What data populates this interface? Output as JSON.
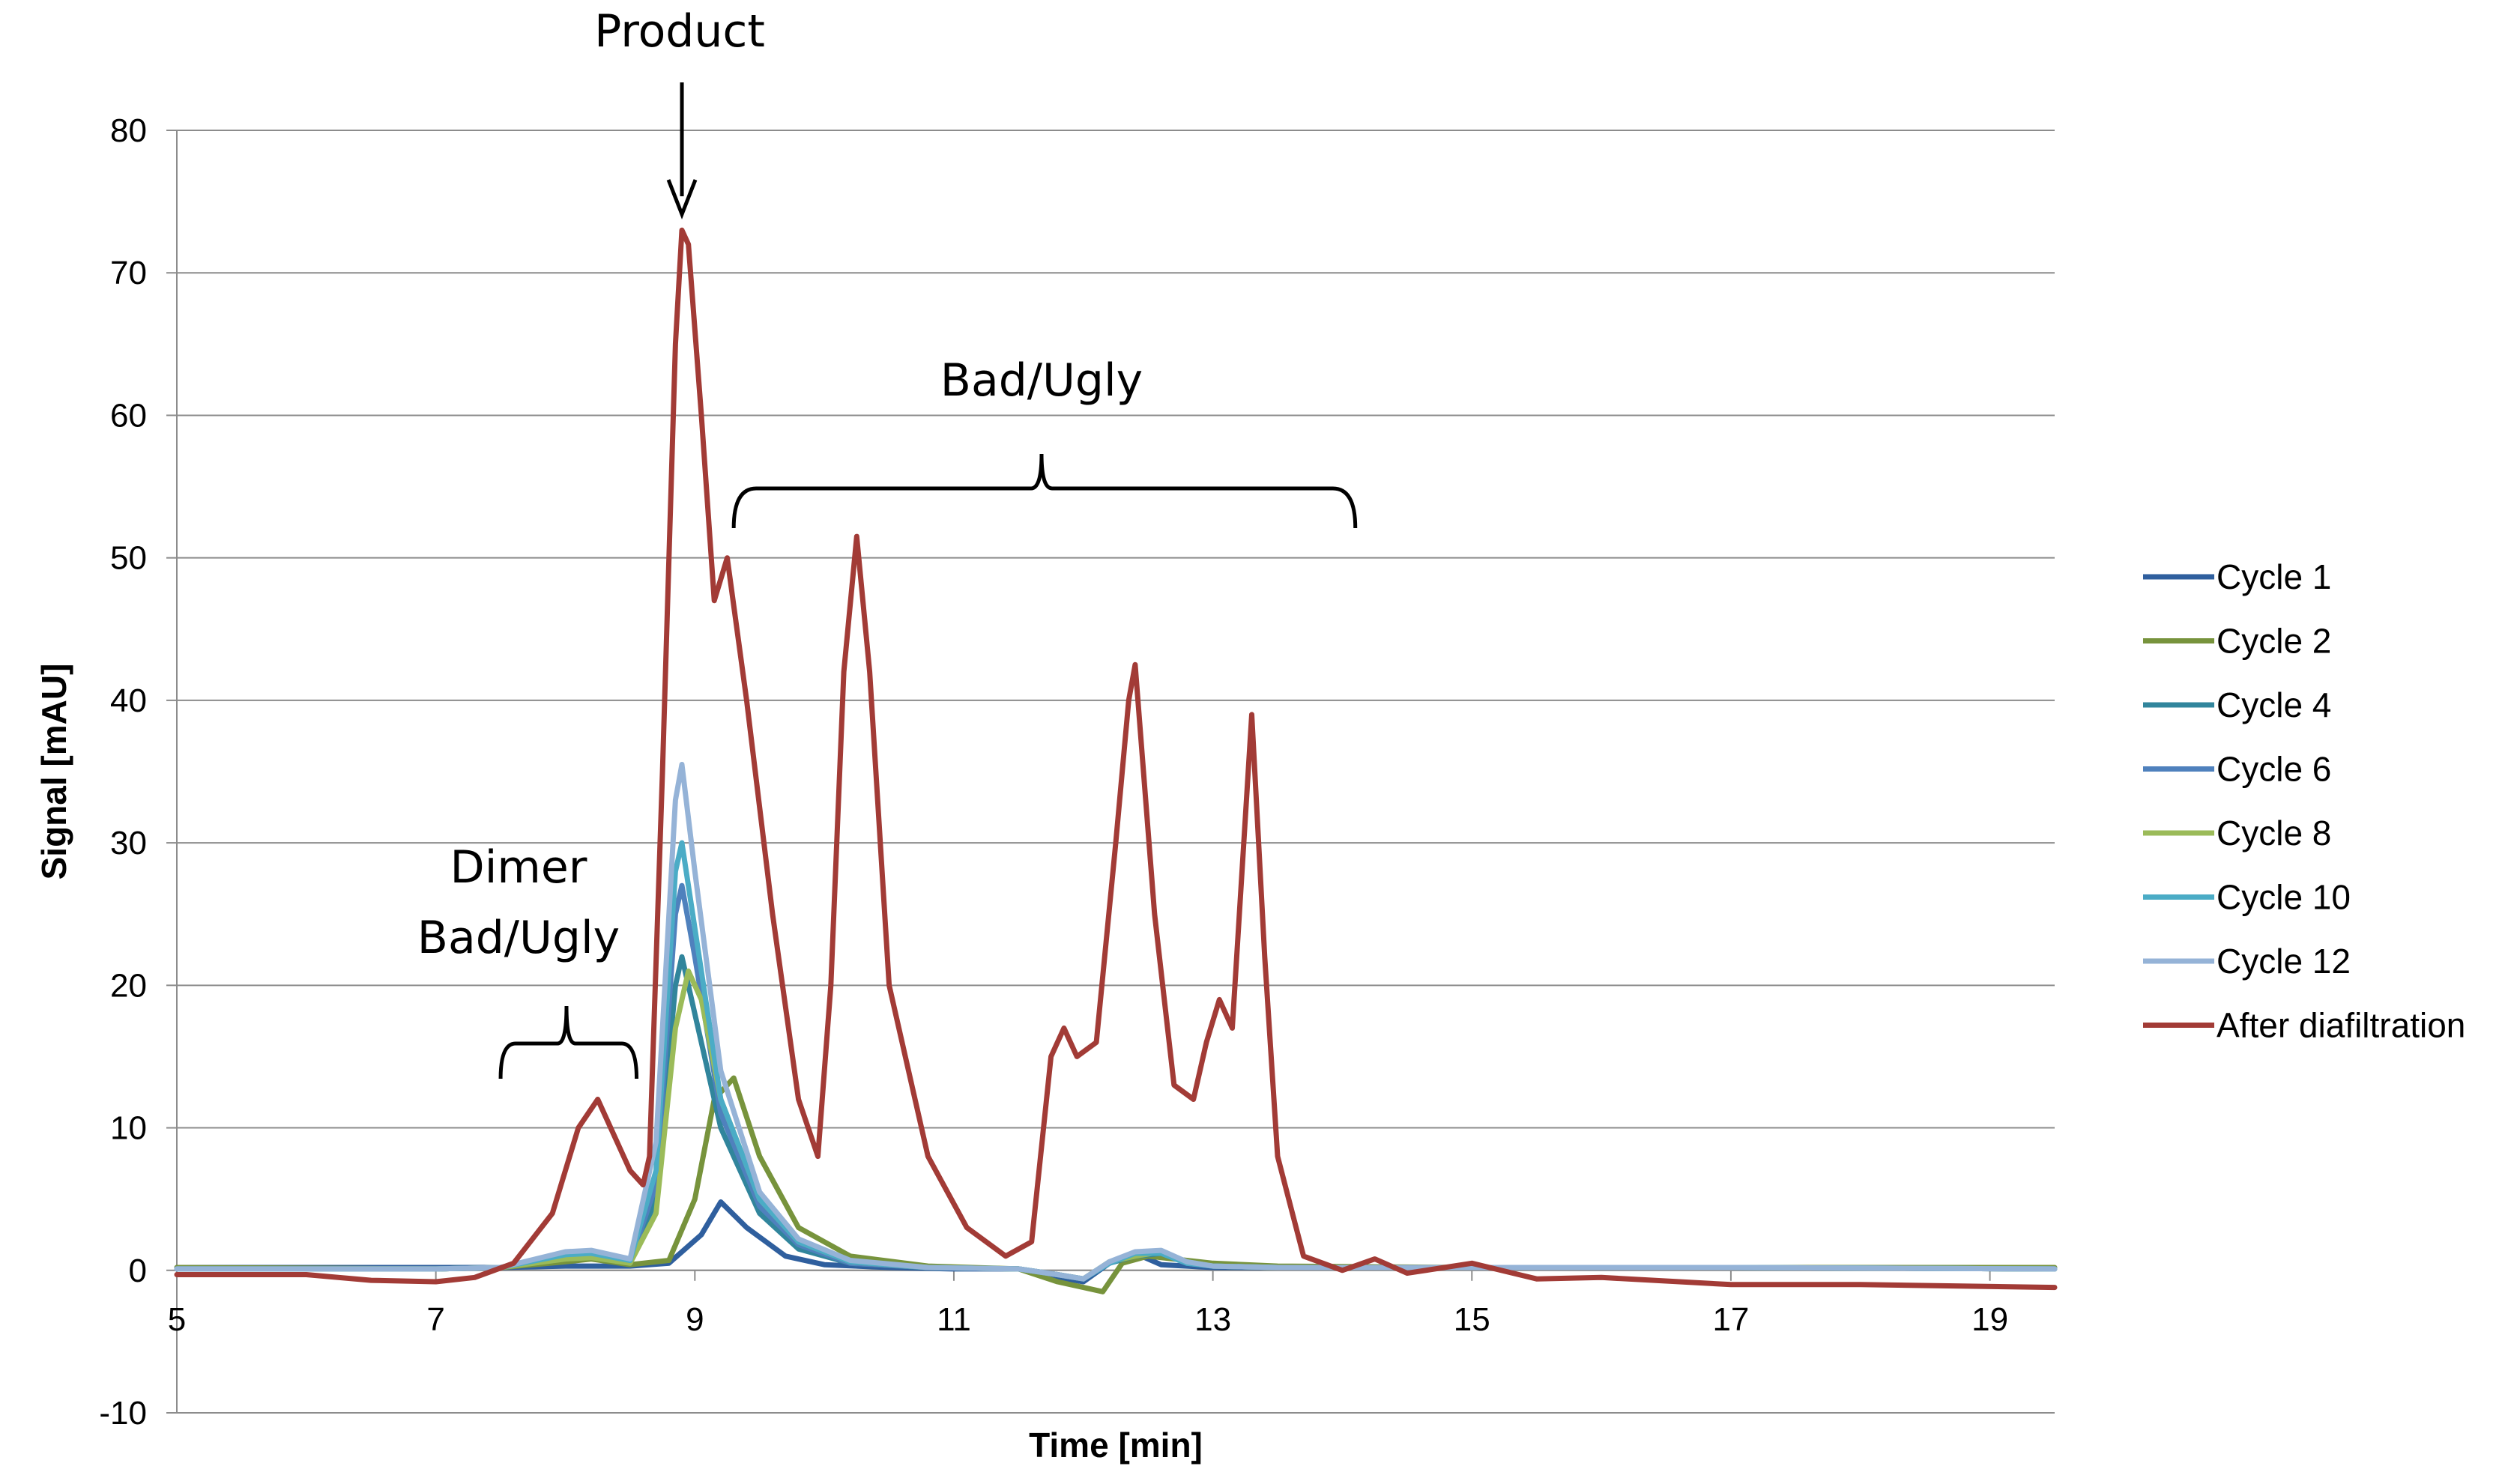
{
  "chart_data": {
    "type": "line",
    "title": "",
    "xlabel": "Time [min]",
    "ylabel": "Signal [mAU]",
    "xlim": [
      5,
      19.5
    ],
    "ylim": [
      -10,
      80
    ],
    "xticks": [
      5,
      7,
      9,
      11,
      13,
      15,
      17,
      19
    ],
    "yticks": [
      -10,
      0,
      10,
      20,
      30,
      40,
      50,
      60,
      70,
      80
    ],
    "grid": "horizontal",
    "legend_position": "right",
    "series": [
      {
        "name": "Cycle 1",
        "color": "#2f5f9e",
        "x": [
          5,
          7,
          7.5,
          8,
          8.5,
          8.8,
          9.05,
          9.2,
          9.4,
          9.7,
          10,
          10.5,
          11,
          11.5,
          11.8,
          12,
          12.2,
          12.4,
          12.6,
          12.8,
          13,
          13.5,
          15,
          17,
          19.5
        ],
        "y": [
          0.2,
          0.2,
          0.2,
          0.3,
          0.3,
          0.5,
          2.5,
          4.8,
          3,
          1,
          0.4,
          0.2,
          0.1,
          0.1,
          -0.5,
          -0.8,
          0.5,
          1.2,
          0.4,
          0.3,
          0.2,
          0.2,
          0.2,
          0.2,
          0.1
        ]
      },
      {
        "name": "Cycle 2",
        "color": "#77933c",
        "x": [
          5,
          7,
          7.5,
          8,
          8.2,
          8.5,
          8.8,
          9,
          9.15,
          9.3,
          9.5,
          9.8,
          10.2,
          10.8,
          11.5,
          11.8,
          12,
          12.15,
          12.3,
          12.5,
          12.7,
          13,
          13.5,
          15,
          17,
          19.5
        ],
        "y": [
          0.2,
          0.1,
          0.2,
          0.6,
          0.8,
          0.4,
          0.7,
          5,
          12,
          13.5,
          8,
          3,
          1,
          0.3,
          0.1,
          -0.8,
          -1.2,
          -1.5,
          0.5,
          1,
          0.8,
          0.5,
          0.3,
          0.2,
          0.2,
          0.2
        ]
      },
      {
        "name": "Cycle 4",
        "color": "#31859c",
        "x": [
          5,
          7,
          7.5,
          8,
          8.2,
          8.5,
          8.7,
          8.85,
          8.9,
          9,
          9.2,
          9.5,
          9.8,
          10.2,
          10.8,
          11.5,
          11.8,
          12,
          12.2,
          12.4,
          12.6,
          12.8,
          13,
          13.5,
          15,
          17,
          19.5
        ],
        "y": [
          0.1,
          0.1,
          0.2,
          0.9,
          1,
          0.5,
          5,
          20,
          22,
          18,
          10,
          4,
          1.5,
          0.5,
          0.2,
          0.1,
          -0.3,
          -0.6,
          0.5,
          1,
          1.2,
          0.5,
          0.3,
          0.2,
          0.2,
          0.2,
          0.1
        ]
      },
      {
        "name": "Cycle 6",
        "color": "#4f81bd",
        "x": [
          5,
          7,
          7.5,
          8,
          8.2,
          8.5,
          8.7,
          8.85,
          8.9,
          9,
          9.2,
          9.5,
          9.8,
          10.2,
          10.8,
          11.5,
          11.8,
          12,
          12.2,
          12.4,
          12.6,
          12.8,
          13,
          13.5,
          15,
          17,
          19.5
        ],
        "y": [
          0.1,
          0.1,
          0.2,
          1,
          1.1,
          0.6,
          6,
          25,
          27,
          22,
          11,
          4.5,
          1.8,
          0.5,
          0.2,
          0.1,
          -0.3,
          -0.6,
          0.5,
          1.2,
          1.2,
          0.5,
          0.3,
          0.2,
          0.2,
          0.2,
          0.1
        ]
      },
      {
        "name": "Cycle 8",
        "color": "#9bbb59",
        "x": [
          5,
          7,
          7.5,
          8,
          8.2,
          8.5,
          8.7,
          8.85,
          8.95,
          9.05,
          9.2,
          9.5,
          9.8,
          10.2,
          10.8,
          11.5,
          11.8,
          12,
          12.2,
          12.4,
          12.6,
          12.8,
          13,
          13.5,
          15,
          17,
          19.5
        ],
        "y": [
          0.1,
          0.1,
          0.2,
          0.8,
          0.9,
          0.5,
          4,
          17,
          21,
          19,
          12,
          5,
          2,
          0.6,
          0.2,
          0.1,
          -0.3,
          -0.6,
          0.6,
          1,
          1.3,
          0.6,
          0.3,
          0.2,
          0.2,
          0.2,
          0.1
        ]
      },
      {
        "name": "Cycle 10",
        "color": "#4bacc6",
        "x": [
          5,
          7,
          7.5,
          8,
          8.2,
          8.5,
          8.7,
          8.85,
          8.9,
          9,
          9.2,
          9.5,
          9.8,
          10.2,
          10.8,
          11.5,
          11.8,
          12,
          12.2,
          12.4,
          12.6,
          12.8,
          13,
          13.5,
          15,
          17,
          19.5
        ],
        "y": [
          0.1,
          0.1,
          0.2,
          1.1,
          1.2,
          0.7,
          7,
          28,
          30,
          24,
          12,
          5,
          2,
          0.6,
          0.2,
          0.1,
          -0.3,
          -0.6,
          0.5,
          1.2,
          1.2,
          0.5,
          0.3,
          0.2,
          0.2,
          0.2,
          0.1
        ]
      },
      {
        "name": "Cycle 12",
        "color": "#95b3d7",
        "x": [
          5,
          7,
          7.5,
          8,
          8.2,
          8.5,
          8.7,
          8.85,
          8.9,
          9,
          9.2,
          9.5,
          9.8,
          10.2,
          10.8,
          11.5,
          11.8,
          12,
          12.2,
          12.4,
          12.6,
          12.8,
          13,
          13.5,
          15,
          17,
          19.5
        ],
        "y": [
          0.1,
          0.1,
          0.2,
          1.3,
          1.4,
          0.8,
          9,
          33,
          35.5,
          28,
          14,
          5.5,
          2.2,
          0.7,
          0.2,
          0.1,
          -0.3,
          -0.6,
          0.6,
          1.3,
          1.4,
          0.6,
          0.3,
          0.2,
          0.2,
          0.2,
          0.1
        ]
      },
      {
        "name": "After diafiltration",
        "color": "#a23b36",
        "x": [
          5,
          5.5,
          6,
          6.5,
          7,
          7.3,
          7.6,
          7.9,
          8.1,
          8.25,
          8.4,
          8.5,
          8.6,
          8.65,
          8.75,
          8.85,
          8.9,
          8.95,
          9.05,
          9.15,
          9.25,
          9.4,
          9.6,
          9.8,
          9.95,
          10.05,
          10.15,
          10.25,
          10.35,
          10.5,
          10.8,
          11.1,
          11.4,
          11.6,
          11.75,
          11.85,
          11.95,
          12.1,
          12.25,
          12.35,
          12.4,
          12.55,
          12.7,
          12.85,
          12.95,
          13.05,
          13.15,
          13.3,
          13.4,
          13.5,
          13.7,
          14,
          14.25,
          14.5,
          15,
          15.5,
          16,
          17,
          18,
          19.5
        ],
        "y": [
          -0.3,
          -0.3,
          -0.3,
          -0.7,
          -0.8,
          -0.5,
          0.5,
          4,
          10,
          12,
          9,
          7,
          6,
          8,
          35,
          65,
          73,
          72,
          60,
          47,
          50,
          40,
          25,
          12,
          8,
          20,
          42,
          51.5,
          42,
          20,
          8,
          3,
          1,
          2,
          15,
          17,
          15,
          16,
          30,
          40,
          42.5,
          25,
          13,
          12,
          16,
          19,
          17,
          39,
          22,
          8,
          1,
          0,
          0.8,
          -0.2,
          0.5,
          -0.6,
          -0.5,
          -1,
          -1,
          -1.2
        ]
      }
    ],
    "annotations": [
      {
        "text": "Product",
        "x": 8.9
      },
      {
        "text": "Bad/Ugly",
        "x_range": [
          9.3,
          14.1
        ]
      },
      {
        "text": "Dimer",
        "x": 8.0
      },
      {
        "text": "Bad/Ugly",
        "x_range": [
          7.5,
          8.55
        ]
      }
    ]
  }
}
